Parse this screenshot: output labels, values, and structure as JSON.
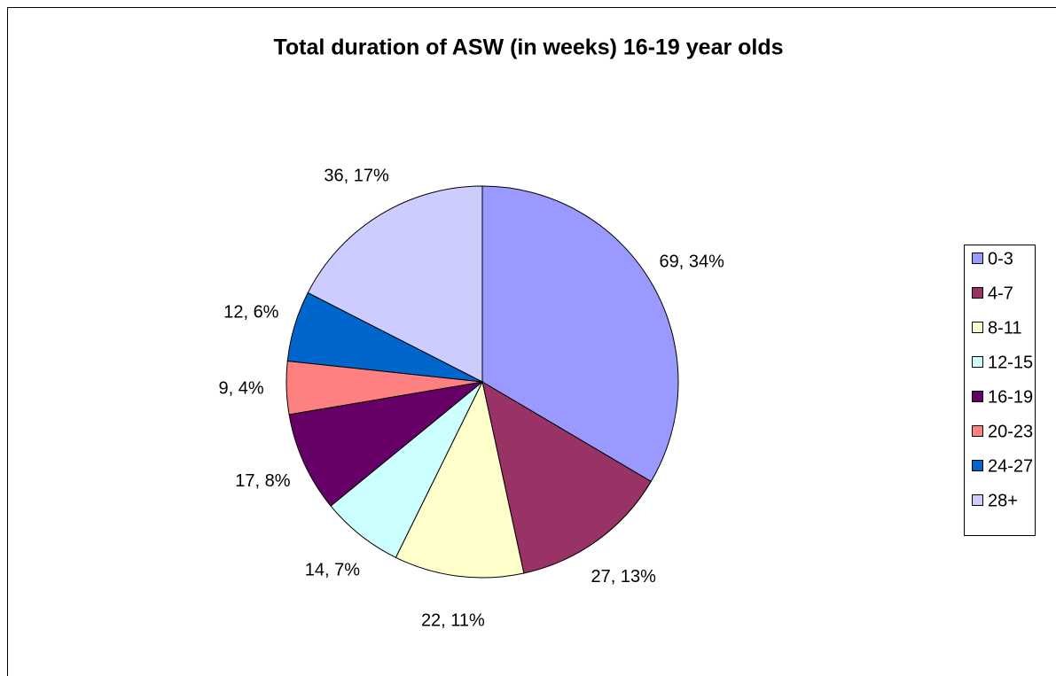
{
  "chart_data": {
    "type": "pie",
    "title": "Total duration of ASW (in weeks) 16-19 year olds",
    "categories": [
      "0-3",
      "4-7",
      "8-11",
      "12-15",
      "16-19",
      "20-23",
      "24-27",
      "28+"
    ],
    "values": [
      69,
      27,
      22,
      14,
      17,
      9,
      12,
      36
    ],
    "value_labels": [
      "69, 34%",
      "27, 13%",
      "22, 11%",
      "14, 7%",
      "17, 8%",
      "9, 4%",
      "12, 6%",
      "36, 17%"
    ],
    "colors": [
      "#9999ff",
      "#993366",
      "#ffffcc",
      "#ccffff",
      "#660066",
      "#ff8080",
      "#0066cc",
      "#ccccff"
    ],
    "legend": "right"
  }
}
